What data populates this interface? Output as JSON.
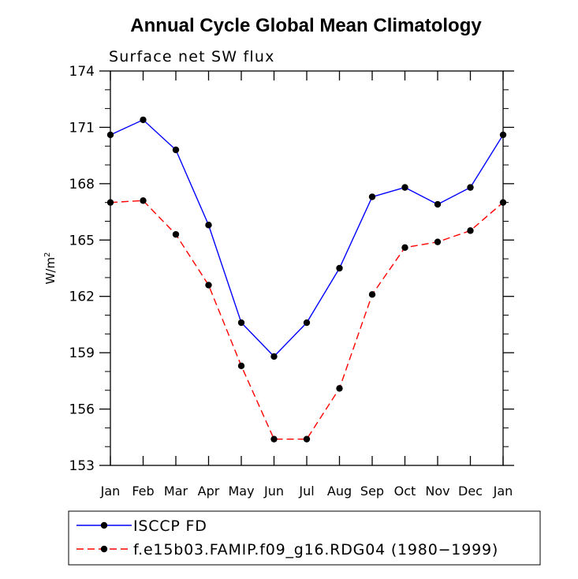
{
  "chart_data": {
    "type": "line",
    "title": "Annual Cycle Global Mean Climatology",
    "subtitle": "Surface net SW flux",
    "ylabel": "W/m",
    "ylabel_sup": "2",
    "xlabel": "",
    "categories": [
      "Jan",
      "Feb",
      "Mar",
      "Apr",
      "May",
      "Jun",
      "Jul",
      "Aug",
      "Sep",
      "Oct",
      "Nov",
      "Dec",
      "Jan"
    ],
    "ylim": [
      153,
      174
    ],
    "yticks": [
      153,
      156,
      159,
      162,
      165,
      168,
      171,
      174
    ],
    "grid": false,
    "legend_placement": "bottom",
    "series": [
      {
        "name": "ISCCP FD",
        "color": "#0000ff",
        "dashed": false,
        "values": [
          170.6,
          171.4,
          169.8,
          165.8,
          160.6,
          158.8,
          160.6,
          163.5,
          167.3,
          167.8,
          166.9,
          167.8,
          170.6
        ]
      },
      {
        "name": "f.e15b03.FAMIP.f09_g16.RDG04 (1980−1999)",
        "color": "#ff0000",
        "dashed": true,
        "values": [
          167.0,
          167.1,
          165.3,
          162.6,
          158.3,
          154.4,
          154.4,
          157.1,
          162.1,
          164.6,
          164.9,
          165.5,
          167.0
        ]
      }
    ]
  }
}
